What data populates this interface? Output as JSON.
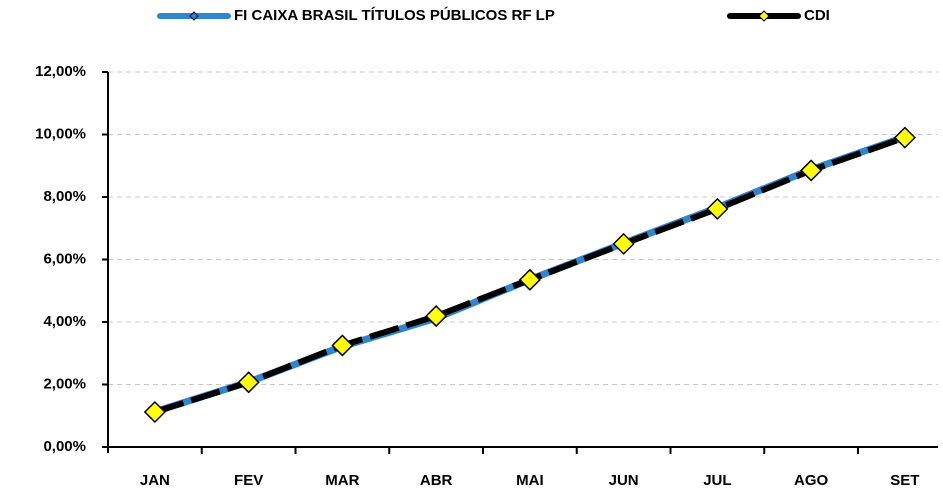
{
  "chart_data": {
    "type": "line",
    "categories": [
      "JAN",
      "FEV",
      "MAR",
      "ABR",
      "MAI",
      "JUN",
      "JUL",
      "AGO",
      "SET"
    ],
    "series": [
      {
        "name": "FI CAIXA BRASIL TÍTULOS PÚBLICOS RF LP",
        "color": "#2e86d1",
        "values": [
          1.13,
          2.08,
          3.22,
          4.12,
          5.36,
          6.52,
          7.66,
          8.88,
          9.92
        ]
      },
      {
        "name": "CDI",
        "color": "#000000",
        "values": [
          1.12,
          2.07,
          3.25,
          4.19,
          5.35,
          6.5,
          7.62,
          8.85,
          9.9
        ]
      }
    ],
    "ylim": [
      0,
      12
    ],
    "yticks": [
      {
        "value": 0,
        "label": "0,00%"
      },
      {
        "value": 2,
        "label": "2,00%"
      },
      {
        "value": 4,
        "label": "4,00%"
      },
      {
        "value": 6,
        "label": "6,00%"
      },
      {
        "value": 8,
        "label": "8,00%"
      },
      {
        "value": 10,
        "label": "10,00%"
      },
      {
        "value": 12,
        "label": "12,00%"
      }
    ],
    "grid": true
  }
}
